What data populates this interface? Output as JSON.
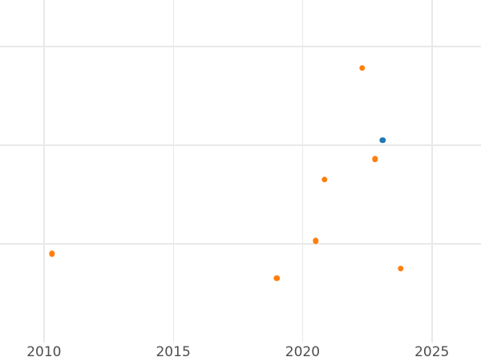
{
  "figure": {
    "background_color": "#ffffff",
    "grid_color": "#e9e9e9",
    "tick_label_color": "#4d4d4d"
  },
  "chart_data": {
    "type": "scatter",
    "title": "",
    "xlabel": "",
    "ylabel": "",
    "grid": true,
    "legend_position": "none",
    "x_ticks": [
      2010,
      2015,
      2020,
      2025
    ],
    "x_tick_labels": [
      "2010",
      "2015",
      "2020",
      "2025"
    ],
    "x_range": [
      2008.3,
      2026.9
    ],
    "y_range": [
      0,
      3.47
    ],
    "y_gridlines": [
      1,
      2,
      3
    ],
    "series": [
      {
        "name": "blue-series",
        "color": "#1f77b4",
        "marker_diameter_px": 7.4,
        "points": [
          {
            "x": 2023.1,
            "y": 2.05
          }
        ]
      },
      {
        "name": "orange-series",
        "color": "#ff7f0e",
        "marker_diameter_px": 7.4,
        "points": [
          {
            "x": 2010.3,
            "y": 0.9
          },
          {
            "x": 2019.0,
            "y": 0.65
          },
          {
            "x": 2020.5,
            "y": 1.03
          },
          {
            "x": 2020.85,
            "y": 1.65
          },
          {
            "x": 2022.3,
            "y": 2.78
          },
          {
            "x": 2022.8,
            "y": 1.86
          },
          {
            "x": 2023.8,
            "y": 0.75
          }
        ]
      }
    ]
  }
}
